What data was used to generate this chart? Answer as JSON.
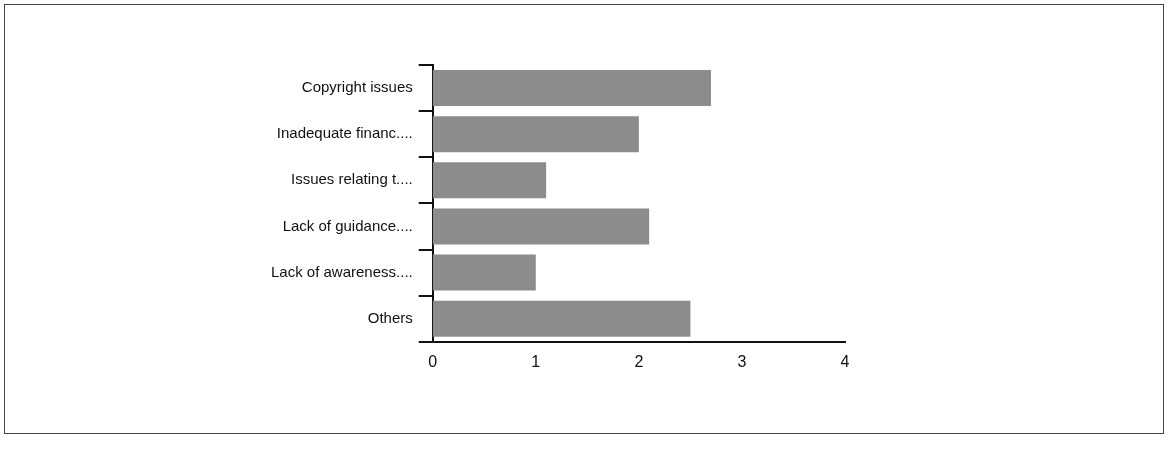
{
  "chart_data": {
    "type": "bar",
    "orientation": "horizontal",
    "categories": [
      "Copyright issues",
      "Inadequate financ....",
      "Issues relating t....",
      "Lack of guidance....",
      "Lack of awareness....",
      "Others"
    ],
    "values": [
      2.7,
      2.0,
      1.1,
      2.1,
      1.0,
      2.5
    ],
    "color": "#8c8c8c",
    "xlim": [
      0,
      4
    ],
    "xticks": [
      0,
      1,
      2,
      3,
      4
    ],
    "grid": false,
    "legend": false
  }
}
